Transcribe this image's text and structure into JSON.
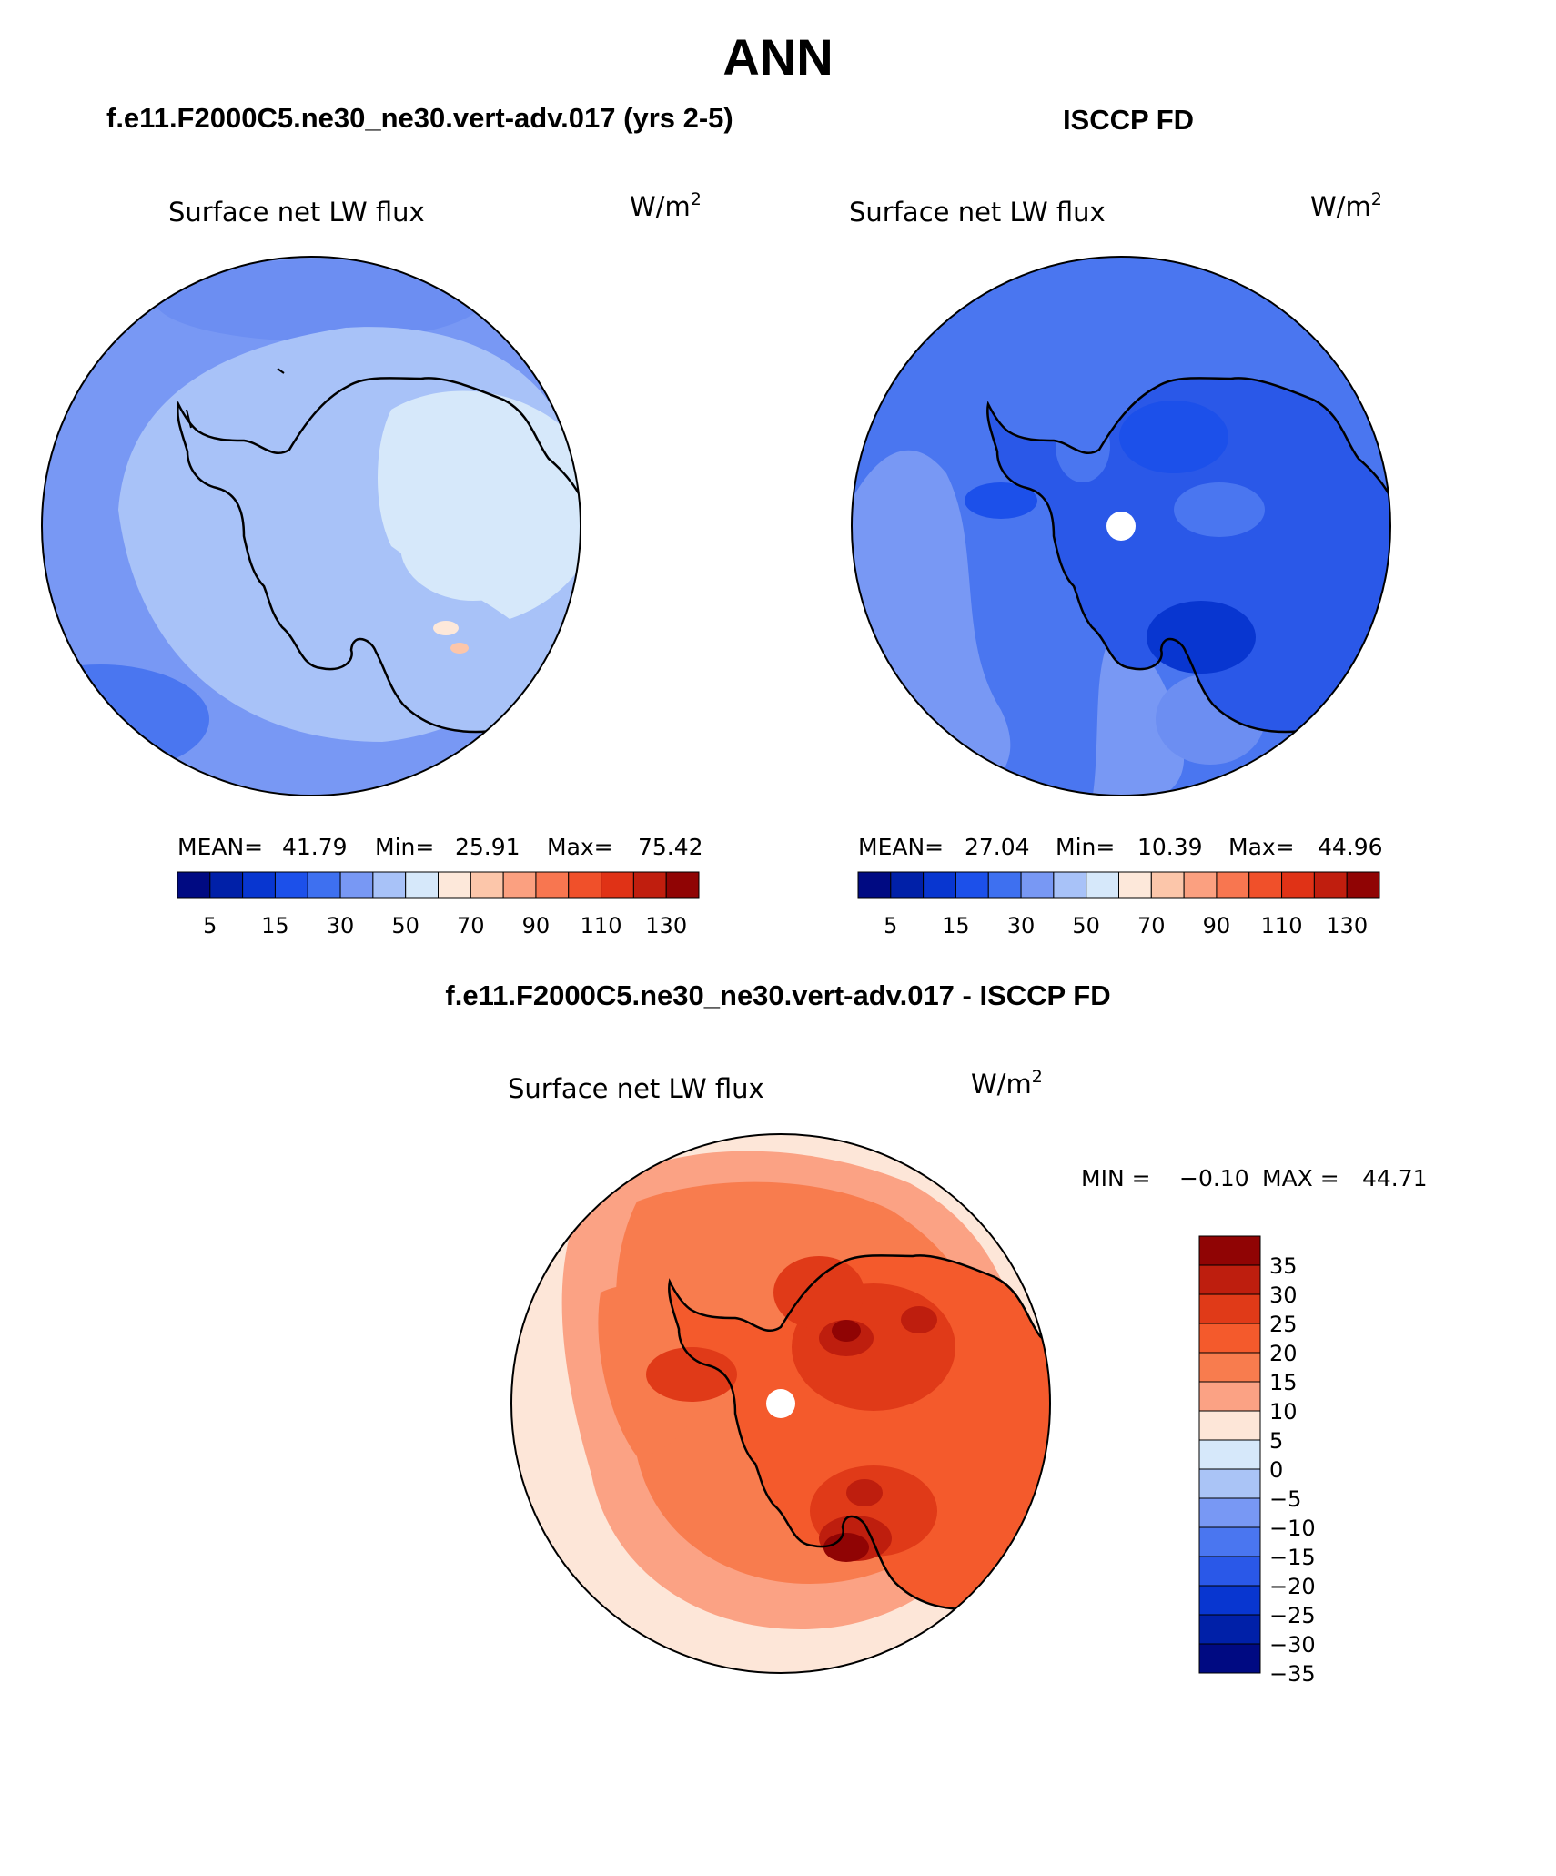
{
  "title": "ANN",
  "panels": [
    {
      "id": "model",
      "case_title": "f.e11.F2000C5.ne30_ne30.vert-adv.017 (yrs 2-5)",
      "variable": "Surface net LW flux",
      "units": "W/m",
      "units_sup": "2",
      "stats": {
        "mean_label": "MEAN=",
        "mean": "41.79",
        "min_label": "Min=",
        "min": "25.91",
        "max_label": "Max=",
        "max": "75.42"
      }
    },
    {
      "id": "obs",
      "case_title": "ISCCP FD",
      "variable": "Surface net LW flux",
      "units": "W/m",
      "units_sup": "2",
      "stats": {
        "mean_label": "MEAN=",
        "mean": "27.04",
        "min_label": "Min=",
        "min": "10.39",
        "max_label": "Max=",
        "max": "44.96"
      }
    },
    {
      "id": "diff",
      "case_title": "f.e11.F2000C5.ne30_ne30.vert-adv.017 - ISCCP FD",
      "variable": "Surface net LW flux",
      "units": "W/m",
      "units_sup": "2",
      "stats": {
        "min_label": "MIN =",
        "min": "−0.10",
        "max_label": "MAX =",
        "max": "44.71"
      }
    }
  ],
  "colorbars": {
    "absolute": {
      "colors": [
        "#000a82",
        "#0020a8",
        "#0836d0",
        "#1c50ea",
        "#3e70f0",
        "#7898f4",
        "#a8c2f8",
        "#d6e8fa",
        "#fde8da",
        "#fcc6aa",
        "#fba080",
        "#f87650",
        "#f0502a",
        "#e03216",
        "#c01e0e",
        "#900404"
      ],
      "tick_labels": [
        "5",
        "15",
        "30",
        "50",
        "70",
        "90",
        "110",
        "130"
      ]
    },
    "difference": {
      "colors_top_to_bottom": [
        "#900404",
        "#be1e0e",
        "#e03a18",
        "#f45a2c",
        "#f87c4e",
        "#fba284",
        "#fde6d8",
        "#d6e8fa",
        "#aac4f6",
        "#7898f4",
        "#4a76f0",
        "#2a58e8",
        "#0836d0",
        "#0020a8",
        "#000a82"
      ],
      "tick_labels": [
        "35",
        "30",
        "25",
        "20",
        "15",
        "10",
        "5",
        "0",
        "−5",
        "−10",
        "−15",
        "−20",
        "−25",
        "−30",
        "−35"
      ]
    }
  }
}
